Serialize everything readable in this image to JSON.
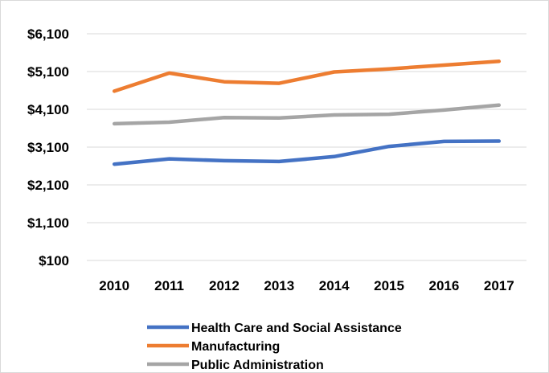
{
  "chart_data": {
    "type": "line",
    "title": "",
    "xlabel": "",
    "ylabel": "",
    "categories": [
      "2010",
      "2011",
      "2012",
      "2013",
      "2014",
      "2015",
      "2016",
      "2017"
    ],
    "y_ticks": [
      "$100",
      "$1,100",
      "$2,100",
      "$3,100",
      "$4,100",
      "$5,100",
      "$6,100"
    ],
    "ylim": [
      100,
      6100
    ],
    "grid": true,
    "legend_position": "bottom",
    "series": [
      {
        "name": "Health Care and Social Assistance",
        "color": "#4472C4",
        "values": [
          2650,
          2790,
          2740,
          2720,
          2850,
          3120,
          3250,
          3260
        ]
      },
      {
        "name": "Manufacturing",
        "color": "#ED7D31",
        "values": [
          4580,
          5060,
          4830,
          4790,
          5090,
          5170,
          5270,
          5370
        ]
      },
      {
        "name": "Public Administration",
        "color": "#A5A5A5",
        "values": [
          3720,
          3760,
          3880,
          3870,
          3950,
          3970,
          4080,
          4210
        ]
      }
    ]
  }
}
